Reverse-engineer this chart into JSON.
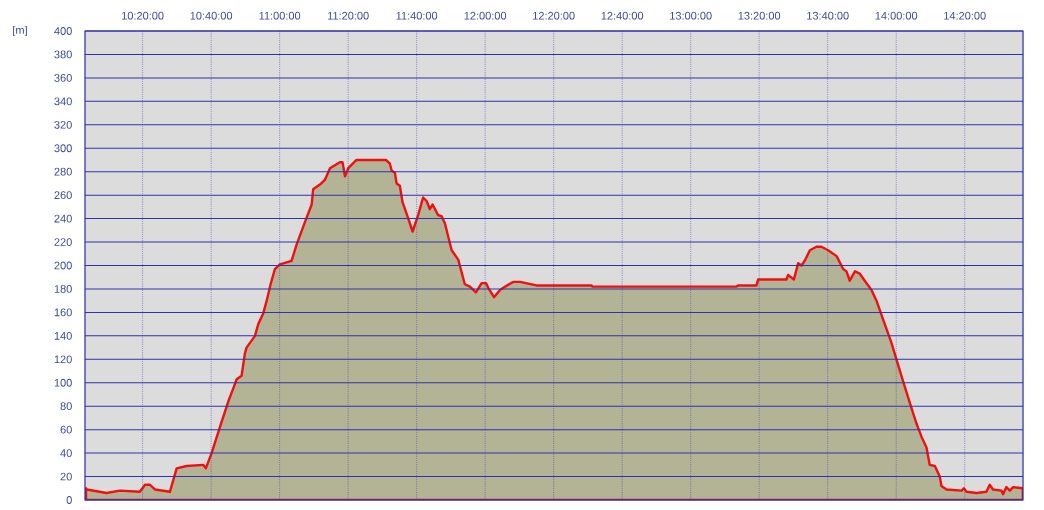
{
  "chart_data": {
    "type": "area",
    "ylabel": "[m]",
    "x": [
      10.058,
      10.062,
      10.158,
      10.223,
      10.32,
      10.345,
      10.369,
      10.393,
      10.466,
      10.499,
      10.547,
      10.628,
      10.641,
      10.669,
      10.709,
      10.75,
      10.774,
      10.791,
      10.815,
      10.831,
      10.839,
      10.88,
      10.896,
      10.92,
      10.937,
      10.956,
      10.977,
      11.001,
      11.058,
      11.083,
      11.123,
      11.156,
      11.163,
      11.196,
      11.22,
      11.245,
      11.293,
      11.306,
      11.318,
      11.334,
      11.374,
      11.517,
      11.536,
      11.545,
      11.561,
      11.569,
      11.585,
      11.598,
      11.626,
      11.647,
      11.674,
      11.698,
      11.715,
      11.731,
      11.744,
      11.771,
      11.788,
      11.804,
      11.837,
      11.869,
      11.901,
      11.926,
      11.955,
      11.983,
      12.004,
      12.015,
      12.043,
      12.072,
      12.088,
      12.136,
      12.169,
      12.25,
      12.518,
      12.522,
      13.223,
      13.231,
      13.32,
      13.328,
      13.466,
      13.474,
      13.502,
      13.523,
      13.539,
      13.555,
      13.58,
      13.612,
      13.636,
      13.669,
      13.71,
      13.742,
      13.758,
      13.774,
      13.799,
      13.823,
      13.847,
      13.88,
      13.904,
      13.936,
      13.977,
      14.001,
      14.034,
      14.066,
      14.099,
      14.123,
      14.147,
      14.163,
      14.188,
      14.212,
      14.22,
      14.245,
      14.318,
      14.329,
      14.342,
      14.391,
      14.439,
      14.455,
      14.471,
      14.512,
      14.52,
      14.536,
      14.553,
      14.569,
      14.616
    ],
    "values": [
      10,
      9,
      6,
      8,
      7,
      13,
      13,
      9,
      7,
      27,
      29,
      30,
      27,
      40,
      62,
      84,
      95,
      103,
      106,
      125,
      130,
      140,
      150,
      159,
      170,
      184,
      197,
      201,
      204,
      218,
      237,
      252,
      265,
      269,
      273,
      283,
      288,
      288,
      276,
      283,
      290,
      290,
      287,
      281,
      279,
      270,
      268,
      254,
      240,
      229,
      243,
      258,
      255,
      248,
      252,
      243,
      242,
      236,
      213,
      205,
      184,
      182,
      177,
      185,
      185,
      181,
      173,
      179,
      181,
      186,
      186,
      183,
      183,
      182,
      182,
      183,
      183,
      188,
      188,
      192,
      188,
      202,
      200,
      204,
      213,
      216,
      216,
      213,
      208,
      197,
      195,
      187,
      195,
      193,
      187,
      179,
      170,
      154,
      134,
      120,
      101,
      83,
      65,
      54,
      45,
      30,
      29,
      20,
      12,
      9,
      8,
      10,
      7,
      6,
      7,
      13,
      9,
      8,
      5,
      11,
      8,
      11,
      10
    ],
    "color": "#b3b495",
    "xlim": [
      10.053,
      14.617
    ],
    "ylim": [
      0,
      400
    ],
    "xticks": [
      {
        "value": 10.3333,
        "label": "10:20:00"
      },
      {
        "value": 10.6667,
        "label": "10:40:00"
      },
      {
        "value": 11,
        "label": "11:00:00"
      },
      {
        "value": 11.3333,
        "label": "11:20:00"
      },
      {
        "value": 11.6667,
        "label": "11:40:00"
      },
      {
        "value": 12,
        "label": "12:00:00"
      },
      {
        "value": 12.3333,
        "label": "12:20:00"
      },
      {
        "value": 12.6667,
        "label": "12:40:00"
      },
      {
        "value": 13,
        "label": "13:00:00"
      },
      {
        "value": 13.3333,
        "label": "13:20:00"
      },
      {
        "value": 13.6667,
        "label": "13:40:00"
      },
      {
        "value": 14,
        "label": "14:00:00"
      },
      {
        "value": 14.3333,
        "label": "14:20:00"
      }
    ],
    "yticks": [
      0,
      20,
      40,
      60,
      80,
      100,
      120,
      140,
      160,
      180,
      200,
      220,
      240,
      260,
      280,
      300,
      320,
      340,
      360,
      380,
      400
    ],
    "grid": true
  }
}
